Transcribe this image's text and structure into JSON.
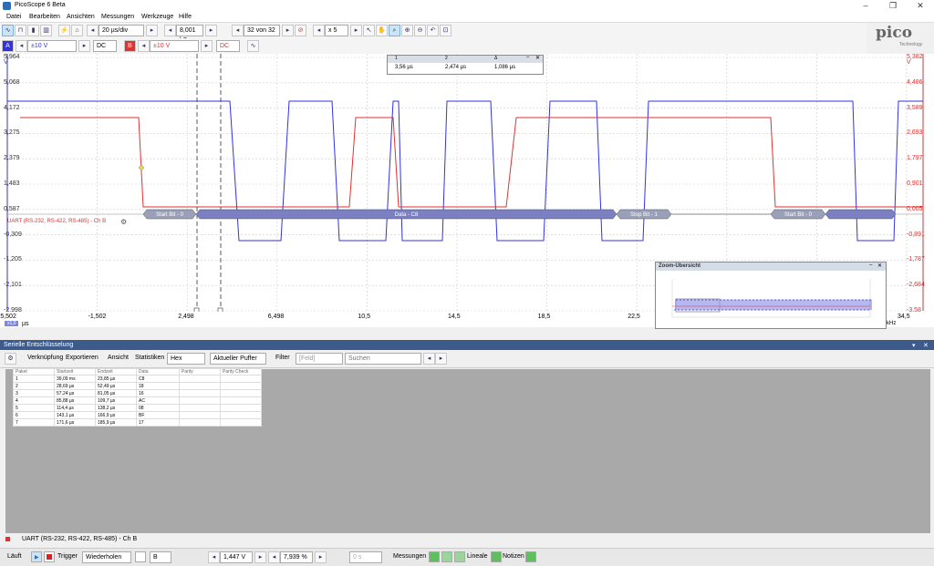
{
  "app": {
    "title": "PicoScope 6 Beta",
    "logo_text": "pico",
    "logo_sub": "Technology"
  },
  "menu": [
    "Datei",
    "Bearbeiten",
    "Ansichten",
    "Messungen",
    "Werkzeuge",
    "Hilfe"
  ],
  "toolbar1": {
    "timebase": "20 µs/div",
    "samples": "8,001 kS",
    "buffer": "32 von 32",
    "zoom": "x 5"
  },
  "toolbar2": {
    "chA_label": "A",
    "chA_range": "±10 V",
    "chA_coupling": "DC",
    "chB_label": "B",
    "chB_range": "±10 V",
    "chB_coupling": "DC"
  },
  "plot": {
    "left_axis": [
      "5,964",
      "5,068",
      "4,172",
      "3,275",
      "2,379",
      "1,483",
      "0,587",
      "-0,309",
      "-1,205",
      "-2,101",
      "-2,998"
    ],
    "left_unit": "V",
    "right_axis": [
      "5,382",
      "4,486",
      "3,589",
      "2,693",
      "1,797",
      "0,901",
      "0,005",
      "-0,891",
      "-1,787",
      "-2,684",
      "-3,58"
    ],
    "right_unit": "V",
    "x_axis": [
      "-5,502",
      "-1,502",
      "2,498",
      "6,498",
      "10,5",
      "14,5",
      "18,5",
      "22,5",
      "26,5",
      "30,5",
      "34,5"
    ],
    "x_unit": "µs",
    "x_scale": "x1,0",
    "decode_label": "UART (RS-232, RS-422, RS-485) - Ch B",
    "segments": [
      {
        "label": "Start Bit - 0"
      },
      {
        "label": "Data - C8"
      },
      {
        "label": "Stop Bit - 1"
      },
      {
        "label": "Start Bit - 0"
      }
    ],
    "freq_label": "kHz"
  },
  "ruler_window": {
    "col1": "1",
    "col2": "2",
    "col3": "Δ",
    "v1": "3,56 µs",
    "v2": "2,474 µs",
    "v3": "1,086 µs"
  },
  "zoom_overview": {
    "title": "Zoom-Übersicht"
  },
  "decode_panel": {
    "title": "Serielle Entschlüsselung",
    "tools": {
      "link": "Verknüpfung",
      "export": "Exportieren",
      "view": "Ansicht",
      "stats": "Statistiken",
      "format": "Hex",
      "buffer": "Aktueller Puffer",
      "filter": "Filter",
      "field": "[Feld]",
      "search_placeholder": "Suchen"
    },
    "columns": [
      "Paket",
      "Startzeit",
      "Endzeit",
      "Data",
      "Parity",
      "Parity Check"
    ],
    "rows": [
      [
        "1",
        "39,09 ms",
        "23,85 µs",
        "C8",
        "",
        ""
      ],
      [
        "2",
        "28,69 µs",
        "52,49 µs",
        "18",
        "",
        ""
      ],
      [
        "3",
        "57,24 µs",
        "81,05 µs",
        "16",
        "",
        ""
      ],
      [
        "4",
        "85,88 µs",
        "109,7 µs",
        "AC",
        "",
        ""
      ],
      [
        "5",
        "114,4 µs",
        "138,2 µs",
        "08",
        "",
        ""
      ],
      [
        "6",
        "143,1 µs",
        "166,9 µs",
        "BF",
        "",
        ""
      ],
      [
        "7",
        "171,6 µs",
        "185,9 µs",
        "17",
        "",
        ""
      ]
    ],
    "bottom_tab": "UART (RS-232, RS-422, RS-485) - Ch B"
  },
  "statusbar": {
    "run": "Läuft",
    "trigger": "Trigger",
    "mode": "Wiederholen",
    "source": "B",
    "level": "1,447 V",
    "pretrigger": "7,939 %",
    "delay": "0 s",
    "measure": "Messungen",
    "rulers": "Lineale",
    "notes": "Notizen"
  },
  "colors": {
    "chA": "#3333dd",
    "chB": "#dd3333",
    "decode": "#8086b8",
    "panel_head": "#3c5a8a"
  }
}
